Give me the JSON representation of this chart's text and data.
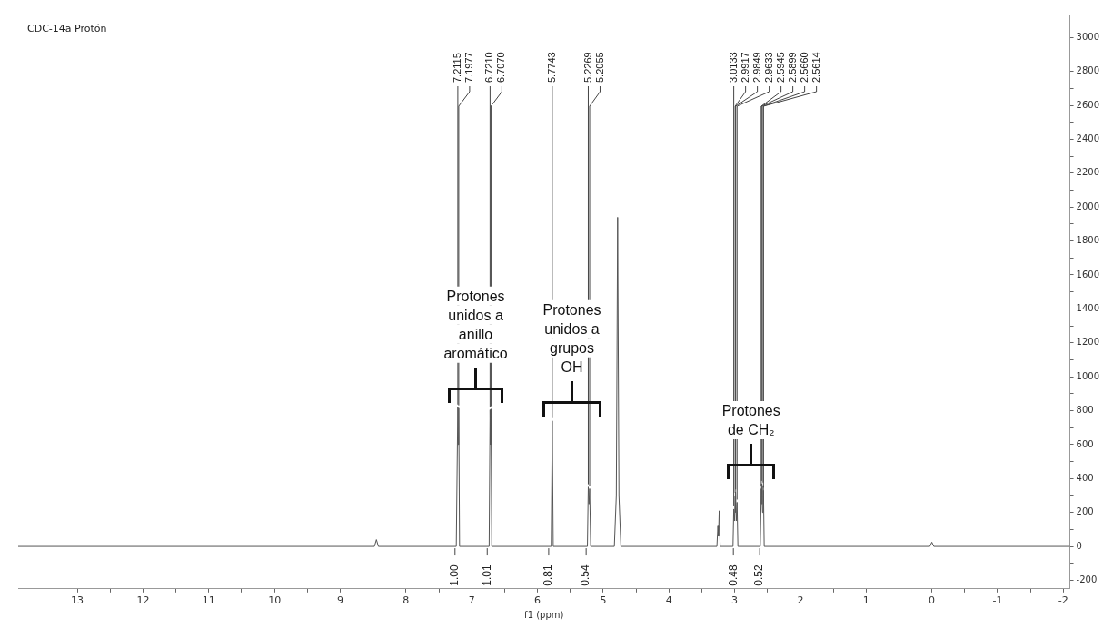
{
  "chart_data": {
    "type": "line",
    "title": "CDC-14a Protón",
    "xlabel": "f1 (ppm)",
    "xlim": [
      13.9,
      -2.1
    ],
    "xticks": [
      13,
      {
        "value": 12.5,
        "label": null
      },
      12,
      {
        "value": 11.5,
        "label": null
      },
      11,
      {
        "value": 10.5,
        "label": null
      },
      10,
      {
        "value": 9.5,
        "label": null
      },
      9,
      {
        "value": 8.5,
        "label": null
      },
      8,
      {
        "value": 7.5,
        "label": null
      },
      7,
      {
        "value": 6.5,
        "label": null
      },
      6,
      {
        "value": 5.5,
        "label": null
      },
      5,
      {
        "value": 4.5,
        "label": null
      },
      4,
      {
        "value": 3.5,
        "label": null
      },
      3,
      {
        "value": 2.5,
        "label": null
      },
      2,
      {
        "value": 1.5,
        "label": null
      },
      1,
      {
        "value": 0.5,
        "label": null
      },
      0,
      {
        "value": -0.5,
        "label": null
      },
      -1,
      {
        "value": -1.5,
        "label": null
      },
      -2
    ],
    "ylim": [
      -250,
      3130
    ],
    "yticks": [
      -200,
      {
        "value": -100,
        "label": null
      },
      0,
      {
        "value": 100,
        "label": null
      },
      200,
      {
        "value": 300,
        "label": null
      },
      400,
      {
        "value": 500,
        "label": null
      },
      600,
      {
        "value": 700,
        "label": null
      },
      800,
      {
        "value": 900,
        "label": null
      },
      1000,
      {
        "value": 1100,
        "label": null
      },
      1200,
      {
        "value": 1300,
        "label": null
      },
      1400,
      {
        "value": 1500,
        "label": null
      },
      1600,
      {
        "value": 1700,
        "label": null
      },
      1800,
      {
        "value": 1900,
        "label": null
      },
      2000,
      {
        "value": 2100,
        "label": null
      },
      2200,
      {
        "value": 2300,
        "label": null
      },
      2400,
      {
        "value": 2500,
        "label": null
      },
      2600,
      {
        "value": 2700,
        "label": null
      },
      2800,
      {
        "value": 2900,
        "label": null
      },
      3000
    ],
    "grid": false,
    "legend": false,
    "series": [
      {
        "color": "#555555",
        "x": [
          13.9,
          8.48,
          8.45,
          8.42,
          7.235,
          7.2115,
          7.204,
          7.1977,
          7.185,
          6.735,
          6.721,
          6.714,
          6.707,
          6.695,
          5.79,
          5.7743,
          5.76,
          5.24,
          5.2269,
          5.216,
          5.2055,
          5.19,
          4.83,
          4.8,
          4.78,
          4.76,
          4.73,
          3.27,
          3.255,
          3.245,
          3.235,
          3.22,
          3.025,
          3.0133,
          3.002,
          2.9917,
          2.988,
          2.9849,
          2.975,
          2.9633,
          2.95,
          2.61,
          2.5945,
          2.592,
          2.5899,
          2.575,
          2.566,
          2.563,
          2.5614,
          2.55,
          0.03,
          0,
          -0.03,
          -2.1
        ],
        "values": [
          0,
          0,
          40,
          0,
          0,
          820,
          600,
          815,
          0,
          0,
          805,
          600,
          810,
          0,
          0,
          740,
          0,
          0,
          350,
          250,
          340,
          0,
          0,
          300,
          1940,
          300,
          0,
          0,
          120,
          60,
          210,
          0,
          0,
          220,
          150,
          300,
          200,
          320,
          150,
          260,
          0,
          0,
          340,
          250,
          370,
          200,
          360,
          250,
          330,
          0,
          0,
          25,
          0,
          0
        ]
      }
    ],
    "annotations": [
      "Protones\nunidos a\nanillo\naromático",
      "Protones\nunidos a\ngrupos\nOH",
      "Protones\nde CH₂",
      {
        "text": "7.2115",
        "x": 7.2115,
        "y": 820
      },
      {
        "text": "7.1977",
        "x": 7.1977,
        "y": 815
      },
      {
        "text": "6.7210",
        "x": 6.721,
        "y": 805
      },
      {
        "text": "6.7070",
        "x": 6.707,
        "y": 810
      },
      {
        "text": "5.7743",
        "x": 5.7743,
        "y": 740
      },
      {
        "text": "5.2269",
        "x": 5.2269,
        "y": 350
      },
      {
        "text": "5.2055",
        "x": 5.2055,
        "y": 340
      },
      {
        "text": "3.0133",
        "x": 3.0133,
        "y": 220
      },
      {
        "text": "2.9917",
        "x": 2.9917,
        "y": 300
      },
      {
        "text": "2.9849",
        "x": 2.9849,
        "y": 320
      },
      {
        "text": "2.9633",
        "x": 2.9633,
        "y": 260
      },
      {
        "text": "2.5945",
        "x": 2.5945,
        "y": 340
      },
      {
        "text": "2.5899",
        "x": 2.5899,
        "y": 370
      },
      {
        "text": "2.5660",
        "x": 2.566,
        "y": 360
      },
      {
        "text": "2.5614",
        "x": 2.5614,
        "y": 330
      },
      {
        "text": "1.00",
        "x": 7.185,
        "y": 0
      },
      {
        "text": "1.01",
        "x": 6.695,
        "y": 0
      },
      {
        "text": "0.81",
        "x": 5.76,
        "y": 0
      },
      {
        "text": "0.54",
        "x": 5.19,
        "y": 0
      },
      {
        "text": "0.48",
        "x": 2.95,
        "y": 0
      },
      {
        "text": "0.52",
        "x": 2.55,
        "y": 0
      }
    ]
  }
}
